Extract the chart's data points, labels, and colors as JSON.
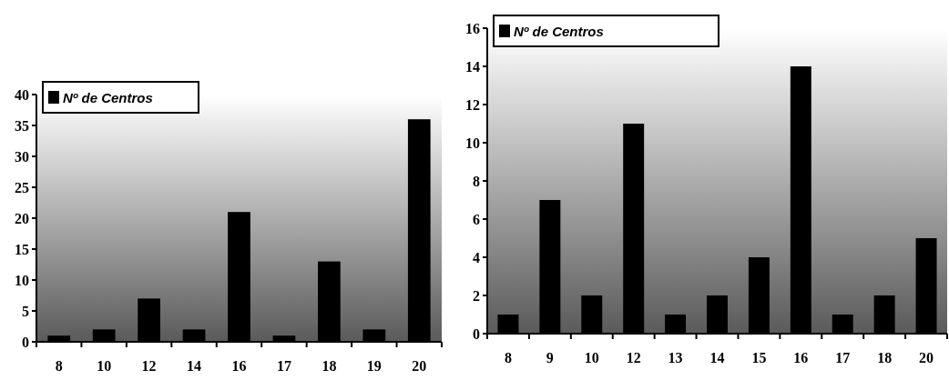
{
  "chart_data": [
    {
      "type": "bar",
      "categories": [
        "8",
        "10",
        "12",
        "14",
        "16",
        "17",
        "18",
        "19",
        "20"
      ],
      "series": [
        {
          "name": "Nº de Centros",
          "color": "#000000",
          "values": [
            1,
            2,
            7,
            2,
            21,
            1,
            13,
            2,
            36
          ]
        }
      ],
      "ylim": [
        0,
        40
      ],
      "yticks": [
        0,
        5,
        10,
        15,
        20,
        25,
        30,
        35,
        40
      ],
      "legend": "top left"
    },
    {
      "type": "bar",
      "categories": [
        "8",
        "9",
        "10",
        "12",
        "13",
        "14",
        "15",
        "16",
        "17",
        "18",
        "20"
      ],
      "series": [
        {
          "name": "Nº de Centros",
          "color": "#000000",
          "values": [
            1,
            7,
            2,
            11,
            1,
            2,
            4,
            14,
            1,
            2,
            5
          ]
        }
      ],
      "ylim": [
        0,
        16
      ],
      "yticks": [
        0,
        2,
        4,
        6,
        8,
        10,
        12,
        14,
        16
      ],
      "legend": "top left"
    }
  ]
}
